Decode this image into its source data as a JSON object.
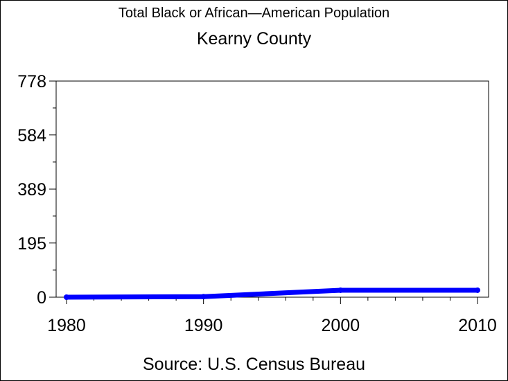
{
  "chart_data": {
    "type": "line",
    "title": "Total Black or African—American Population",
    "subtitle": "Kearny County",
    "source": "Source: U.S. Census Bureau",
    "x": [
      1980,
      1990,
      2000,
      2010
    ],
    "series": [
      {
        "values": [
          0,
          2,
          25,
          25
        ],
        "color": "#0000ff"
      }
    ],
    "xlim": [
      1980,
      2010
    ],
    "ylim": [
      0,
      778
    ],
    "xticks": [
      1980,
      1990,
      2000,
      2010
    ],
    "yticks": [
      0,
      195,
      389,
      584,
      778
    ],
    "grid": false
  }
}
